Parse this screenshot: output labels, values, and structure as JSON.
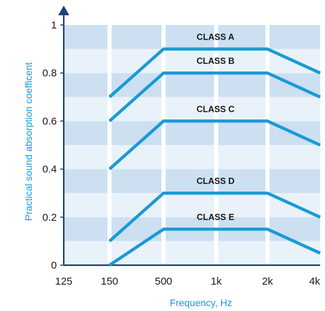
{
  "chart_data": {
    "type": "line",
    "title": "",
    "xlabel": "Frequency, Hz",
    "ylabel": "Practical sound absorption coefficent",
    "x_tick_labels": [
      "125",
      "150",
      "500",
      "1k",
      "2k",
      "4k"
    ],
    "y_tick_labels": [
      "0",
      "0.2",
      "0.4",
      "0.6",
      "0.8",
      "1"
    ],
    "ylim": [
      0,
      1
    ],
    "categories": [
      "125",
      "150",
      "500",
      "1k",
      "2k",
      "4k"
    ],
    "series": [
      {
        "name": "CLASS A",
        "x": [
          "150",
          "500",
          "1k",
          "2k",
          "4k"
        ],
        "values": [
          0.7,
          0.9,
          0.9,
          0.9,
          0.8
        ]
      },
      {
        "name": "CLASS B",
        "x": [
          "150",
          "500",
          "1k",
          "2k",
          "4k"
        ],
        "values": [
          0.6,
          0.8,
          0.8,
          0.8,
          0.7
        ]
      },
      {
        "name": "CLASS C",
        "x": [
          "150",
          "500",
          "1k",
          "2k",
          "4k"
        ],
        "values": [
          0.4,
          0.6,
          0.6,
          0.6,
          0.5
        ]
      },
      {
        "name": "CLASS D",
        "x": [
          "150",
          "500",
          "1k",
          "2k",
          "4k"
        ],
        "values": [
          0.1,
          0.3,
          0.3,
          0.3,
          0.2
        ]
      },
      {
        "name": "CLASS E",
        "x": [
          "150",
          "500",
          "1k",
          "2k",
          "4k"
        ],
        "values": [
          0.0,
          0.15,
          0.15,
          0.15,
          0.05
        ]
      }
    ],
    "grid": true,
    "colors": {
      "line": "#1b9ad6",
      "axis": "#1f3f7a",
      "band_dark": "#cde0f2",
      "band_light": "#eaf2f9",
      "label": "#1b9ad6",
      "grid_line": "#ffffff"
    }
  }
}
